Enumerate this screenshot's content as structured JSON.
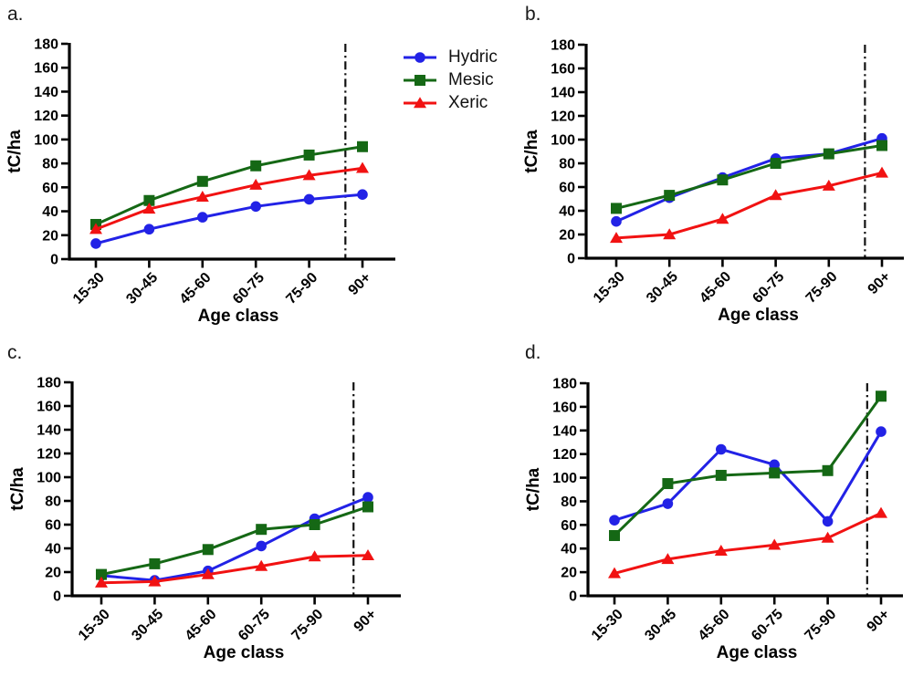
{
  "legend": {
    "items": [
      {
        "label": "Hydric",
        "color": "#2222e6",
        "marker": "circle"
      },
      {
        "label": "Mesic",
        "color": "#156815",
        "marker": "square"
      },
      {
        "label": "Xeric",
        "color": "#f11212",
        "marker": "triangle"
      }
    ]
  },
  "chart_data": [
    {
      "panel_label": "a.",
      "type": "line",
      "categories": [
        "15-30",
        "30-45",
        "45-60",
        "60-75",
        "75-90",
        "90+"
      ],
      "xlabel": "Age class",
      "ylabel": "tC/ha",
      "ylim": [
        0,
        180
      ],
      "ytick_step": 20,
      "grid": false,
      "legend_position": "right-of-panel-a",
      "vline_x": 4.68,
      "vline_style": "dash-dot",
      "series": [
        {
          "name": "Hydric",
          "values": [
            13,
            25,
            35,
            44,
            50,
            54
          ]
        },
        {
          "name": "Mesic",
          "values": [
            29,
            49,
            65,
            78,
            87,
            94
          ]
        },
        {
          "name": "Xeric",
          "values": [
            25,
            42,
            52,
            62,
            70,
            76
          ]
        }
      ]
    },
    {
      "panel_label": "b.",
      "type": "line",
      "categories": [
        "15-30",
        "30-45",
        "45-60",
        "60-75",
        "75-90",
        "90+"
      ],
      "xlabel": "Age class",
      "ylabel": "tC/ha",
      "ylim": [
        0,
        180
      ],
      "ytick_step": 20,
      "grid": false,
      "vline_x": 4.68,
      "vline_style": "dash-dot",
      "series": [
        {
          "name": "Hydric",
          "values": [
            31,
            51,
            68,
            84,
            88,
            101
          ]
        },
        {
          "name": "Mesic",
          "values": [
            42,
            53,
            66,
            80,
            88,
            95
          ]
        },
        {
          "name": "Xeric",
          "values": [
            17,
            20,
            33,
            53,
            61,
            72
          ]
        }
      ]
    },
    {
      "panel_label": "c.",
      "type": "line",
      "categories": [
        "15-30",
        "30-45",
        "45-60",
        "60-75",
        "75-90",
        "90+"
      ],
      "xlabel": "Age class",
      "ylabel": "tC/ha",
      "ylim": [
        0,
        180
      ],
      "ytick_step": 20,
      "grid": false,
      "vline_x": 4.73,
      "vline_style": "dash-dot",
      "series": [
        {
          "name": "Hydric",
          "values": [
            17,
            13,
            21,
            42,
            65,
            83
          ]
        },
        {
          "name": "Mesic",
          "values": [
            18,
            27,
            39,
            56,
            60,
            75
          ]
        },
        {
          "name": "Xeric",
          "values": [
            11,
            12,
            18,
            25,
            33,
            34
          ]
        }
      ]
    },
    {
      "panel_label": "d.",
      "type": "line",
      "categories": [
        "15-30",
        "30-45",
        "45-60",
        "60-75",
        "75-90",
        "90+"
      ],
      "xlabel": "Age class",
      "ylabel": "tC/ha",
      "ylim": [
        0,
        180
      ],
      "ytick_step": 20,
      "grid": false,
      "vline_x": 4.74,
      "vline_style": "dash-dot",
      "series": [
        {
          "name": "Hydric",
          "values": [
            64,
            78,
            124,
            111,
            63,
            139
          ]
        },
        {
          "name": "Mesic",
          "values": [
            51,
            95,
            102,
            104,
            106,
            169
          ]
        },
        {
          "name": "Xeric",
          "values": [
            19,
            31,
            38,
            43,
            49,
            70
          ]
        }
      ]
    }
  ]
}
